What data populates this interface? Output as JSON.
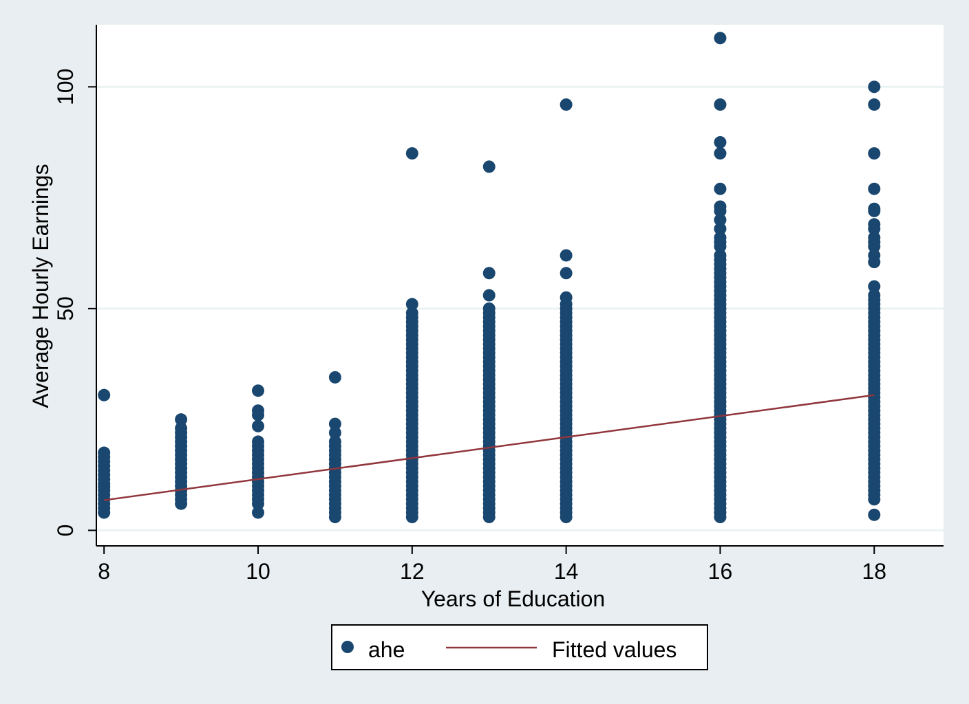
{
  "chart_data": {
    "type": "scatter",
    "xlabel": "Years of Education",
    "ylabel": "Average Hourly Earnings",
    "xlim": [
      7.9,
      18.9
    ],
    "ylim": [
      -3.5,
      114
    ],
    "x_ticks": [
      8,
      10,
      12,
      14,
      16,
      18
    ],
    "y_ticks": [
      0,
      50,
      100
    ],
    "grid": "horizontal",
    "legend_position": "bottom",
    "colors": {
      "background": "#e8eef1",
      "plot_area": "#ffffff",
      "points": "#1a476f",
      "fit_line": "#90353b",
      "grid": "#eaf2f3"
    },
    "series": [
      {
        "name": "ahe",
        "kind": "scatter",
        "groups": [
          {
            "x": 8,
            "y": [
              30.5,
              17.5,
              16.5,
              15.5,
              14.5,
              13.5,
              12.5,
              11.5,
              10.5,
              9.8,
              9,
              8,
              7,
              6,
              5,
              4
            ]
          },
          {
            "x": 9,
            "y": [
              25,
              23,
              22,
              21,
              20,
              19,
              18,
              17,
              16,
              15,
              14,
              13,
              12,
              11,
              10,
              9,
              8,
              7,
              6
            ]
          },
          {
            "x": 10,
            "y": [
              31.5,
              27,
              26,
              23.5,
              20,
              19,
              18,
              17,
              16,
              15,
              14,
              13,
              12,
              11,
              10,
              9,
              8,
              7,
              6,
              4
            ]
          },
          {
            "x": 11,
            "y": [
              34.5,
              24,
              22,
              20,
              19,
              18,
              17,
              16,
              15,
              14,
              13,
              12,
              11,
              10,
              9,
              8,
              7,
              6,
              5,
              4,
              3
            ]
          },
          {
            "x": 12,
            "y": [
              85,
              51,
              49,
              48,
              47,
              46,
              45,
              44,
              43,
              42,
              41,
              40,
              39,
              38,
              37,
              36,
              35,
              34,
              33,
              32,
              31,
              30,
              29,
              28,
              27,
              26,
              25,
              24,
              23,
              22,
              21,
              20,
              19,
              18,
              17,
              16,
              15,
              14,
              13,
              12,
              11,
              10,
              9,
              8,
              7,
              6,
              5,
              4,
              3
            ]
          },
          {
            "x": 13,
            "y": [
              82,
              58,
              53,
              50,
              49,
              48,
              47,
              46,
              45,
              44,
              43,
              42,
              41,
              40,
              39,
              38,
              37,
              36,
              35,
              34,
              33,
              32,
              31,
              30,
              29,
              28,
              27,
              26,
              25,
              24,
              23,
              22,
              21,
              20,
              19,
              18,
              17,
              16,
              15,
              14,
              13,
              12,
              11,
              10,
              9,
              8,
              7,
              6,
              5,
              4,
              3
            ]
          },
          {
            "x": 14,
            "y": [
              96,
              62,
              58,
              52.5,
              51,
              50,
              49,
              48,
              47,
              46,
              45,
              44,
              43,
              42,
              41,
              40,
              39,
              38,
              37,
              36,
              35,
              34,
              33,
              32,
              31,
              30,
              29,
              28,
              27,
              26,
              25,
              24,
              23,
              22,
              21,
              20,
              19,
              18,
              17,
              16,
              15,
              14,
              13,
              12,
              11,
              10,
              9,
              8,
              7,
              6,
              5,
              4,
              3
            ]
          },
          {
            "x": 16,
            "y": [
              111,
              96,
              87.5,
              85,
              77,
              73,
              72,
              70,
              68,
              66,
              65,
              64,
              62,
              61,
              60,
              59,
              58,
              57,
              56,
              55,
              54,
              53,
              52,
              51,
              50,
              49,
              48,
              47,
              46,
              45,
              44,
              43,
              42,
              41,
              40,
              39,
              38,
              37,
              36,
              35,
              34,
              33,
              32,
              31,
              30,
              29,
              28,
              27,
              26,
              25,
              24,
              23,
              22,
              21,
              20,
              19,
              18,
              17,
              16,
              15,
              14,
              13,
              12,
              11,
              10,
              9,
              8,
              7,
              6,
              5,
              4,
              3
            ]
          },
          {
            "x": 18,
            "y": [
              100,
              96,
              85,
              77,
              72.5,
              72,
              69,
              68,
              66,
              65,
              64,
              62,
              60.5,
              55,
              53,
              52,
              51,
              50,
              49,
              48,
              47,
              46,
              45,
              44,
              43,
              42,
              41,
              40,
              39,
              38,
              37,
              36,
              35,
              34,
              33,
              32,
              31,
              30,
              29,
              28,
              27,
              26,
              25,
              24,
              23,
              22,
              21,
              20,
              19,
              18,
              17,
              16,
              15,
              14,
              13,
              12,
              11,
              10,
              9,
              8,
              7,
              3.5
            ]
          }
        ]
      },
      {
        "name": "Fitted values",
        "kind": "line",
        "x": [
          8,
          18
        ],
        "y": [
          6.8,
          30.5
        ]
      }
    ]
  }
}
